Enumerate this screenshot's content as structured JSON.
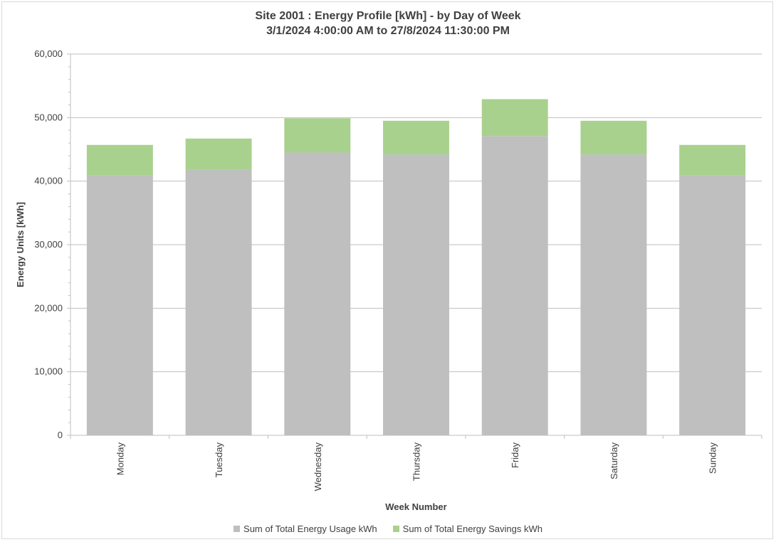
{
  "chart_data": {
    "type": "bar",
    "stacked": true,
    "title": "Site 2001 : Energy Profile [kWh] - by Day of Week",
    "subtitle": "3/1/2024 4:00:00 AM to 27/8/2024 11:30:00 PM",
    "xlabel": "Week Number",
    "ylabel": "Energy Units [kWh]",
    "ylim": [
      0,
      60000
    ],
    "yticks": [
      0,
      10000,
      20000,
      30000,
      40000,
      50000,
      60000
    ],
    "ytick_labels": [
      "0",
      "10,000",
      "20,000",
      "30,000",
      "40,000",
      "50,000",
      "60,000"
    ],
    "grid": true,
    "legend_position": "bottom",
    "categories": [
      "Monday",
      "Tuesday",
      "Wednesday",
      "Thursday",
      "Friday",
      "Saturday",
      "Sunday"
    ],
    "series": [
      {
        "name": "Sum of Total Energy Usage kWh",
        "color": "#bfbfbf",
        "values": [
          40900,
          41800,
          44500,
          44200,
          47100,
          44200,
          40900
        ]
      },
      {
        "name": "Sum of Total Energy Savings kWh",
        "color": "#a9d18e",
        "values": [
          4800,
          4900,
          5400,
          5300,
          5800,
          5300,
          4800
        ]
      }
    ]
  }
}
